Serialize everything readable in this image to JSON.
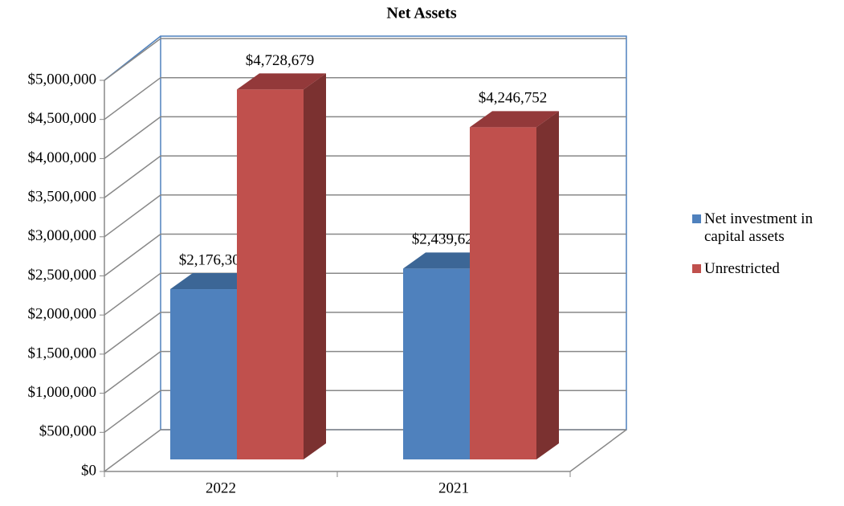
{
  "chart_data": {
    "type": "bar3d",
    "title": "Net Assets",
    "categories": [
      "2022",
      "2021"
    ],
    "series": [
      {
        "name": "Net investment in capital assets",
        "color": "#4f81bd",
        "values": [
          2176308,
          2439620
        ],
        "value_labels": [
          "$2,176,308",
          "$2,439,620"
        ]
      },
      {
        "name": "Unrestricted",
        "color": "#c0504d",
        "values": [
          4728679,
          4246752
        ],
        "value_labels": [
          "$4,728,679",
          "$4,246,752"
        ]
      }
    ],
    "ylim": [
      0,
      5000000
    ],
    "yticks": [
      {
        "value": 0,
        "label": "$0"
      },
      {
        "value": 500000,
        "label": "$500,000"
      },
      {
        "value": 1000000,
        "label": "$1,000,000"
      },
      {
        "value": 1500000,
        "label": "$1,500,000"
      },
      {
        "value": 2000000,
        "label": "$2,000,000"
      },
      {
        "value": 2500000,
        "label": "$2,500,000"
      },
      {
        "value": 3000000,
        "label": "$3,000,000"
      },
      {
        "value": 3500000,
        "label": "$3,500,000"
      },
      {
        "value": 4000000,
        "label": "$4,000,000"
      },
      {
        "value": 4500000,
        "label": "$4,500,000"
      },
      {
        "value": 5000000,
        "label": "$5,000,000"
      }
    ],
    "grid": true,
    "legend": "right"
  }
}
